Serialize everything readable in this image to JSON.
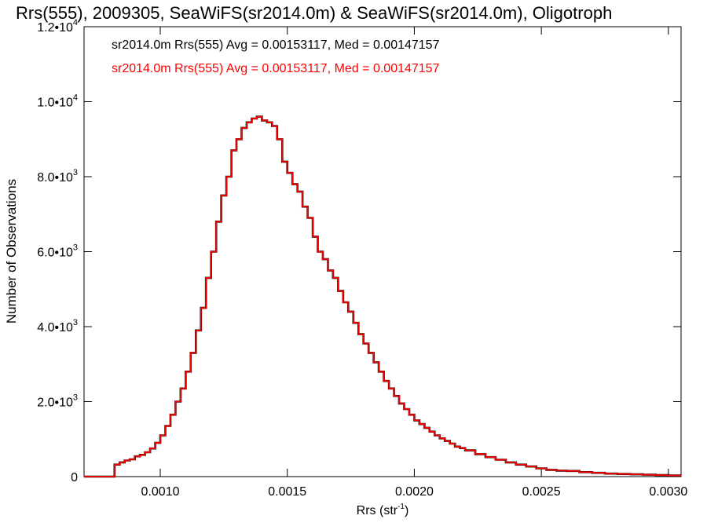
{
  "chart_data": {
    "type": "line",
    "title": "Rrs(555), 2009305, SeaWiFS(sr2014.0m) & SeaWiFS(sr2014.0m), Oligotroph",
    "xlabel": "Rrs (str",
    "xlabel_sup": "-1",
    "xlabel_tail": ")",
    "ylabel": "Number of Observations",
    "xlim": [
      0.0007,
      0.00305
    ],
    "ylim": [
      0,
      12000
    ],
    "grid": false,
    "x_ticks": [
      {
        "value": 0.001,
        "label": "0.0010"
      },
      {
        "value": 0.0015,
        "label": "0.0015"
      },
      {
        "value": 0.002,
        "label": "0.0020"
      },
      {
        "value": 0.0025,
        "label": "0.0025"
      },
      {
        "value": 0.003,
        "label": "0.0030"
      }
    ],
    "y_ticks": [
      {
        "value": 0,
        "mant": "0",
        "exp": ""
      },
      {
        "value": 2000,
        "mant": "2.0•10",
        "exp": "3"
      },
      {
        "value": 4000,
        "mant": "4.0•10",
        "exp": "3"
      },
      {
        "value": 6000,
        "mant": "6.0•10",
        "exp": "3"
      },
      {
        "value": 8000,
        "mant": "8.0•10",
        "exp": "3"
      },
      {
        "value": 10000,
        "mant": "1.0•10",
        "exp": "4"
      },
      {
        "value": 12000,
        "mant": "1.2•10",
        "exp": "4"
      }
    ],
    "annotations": [
      {
        "text": "sr2014.0m Rrs(555) Avg = 0.00153117, Med = 0.00147157",
        "color": "#000000"
      },
      {
        "text": "sr2014.0m Rrs(555) Avg = 0.00153117, Med = 0.00147157",
        "color": "#ff0000"
      }
    ],
    "series": [
      {
        "color": "#ff0000",
        "underlay_color": "#000000",
        "x": [
          0.0007,
          0.00076,
          0.00078,
          0.0008,
          0.00082,
          0.00084,
          0.00086,
          0.00088,
          0.0009,
          0.00092,
          0.00094,
          0.00096,
          0.00098,
          0.001,
          0.00102,
          0.00104,
          0.00106,
          0.00108,
          0.0011,
          0.00112,
          0.00114,
          0.00116,
          0.00118,
          0.0012,
          0.00122,
          0.00124,
          0.00126,
          0.00128,
          0.0013,
          0.00132,
          0.00134,
          0.00136,
          0.00138,
          0.0014,
          0.00142,
          0.00144,
          0.00146,
          0.00148,
          0.0015,
          0.00152,
          0.00154,
          0.00156,
          0.00158,
          0.0016,
          0.00162,
          0.00164,
          0.00166,
          0.00168,
          0.0017,
          0.00172,
          0.00174,
          0.00176,
          0.00178,
          0.0018,
          0.00182,
          0.00184,
          0.00186,
          0.00188,
          0.0019,
          0.00192,
          0.00194,
          0.00196,
          0.00198,
          0.002,
          0.00202,
          0.00204,
          0.00206,
          0.00208,
          0.0021,
          0.00212,
          0.00214,
          0.00216,
          0.00218,
          0.0022,
          0.00224,
          0.00228,
          0.00232,
          0.00236,
          0.0024,
          0.00244,
          0.00248,
          0.00252,
          0.00256,
          0.0026,
          0.00265,
          0.0027,
          0.00275,
          0.0028,
          0.00285,
          0.0029,
          0.00295,
          0.003,
          0.00305
        ],
        "y": [
          0,
          0,
          0,
          0,
          320,
          380,
          430,
          460,
          540,
          580,
          650,
          750,
          900,
          1100,
          1350,
          1650,
          2000,
          2350,
          2800,
          3300,
          3900,
          4500,
          5300,
          6000,
          6800,
          7500,
          8000,
          8700,
          9000,
          9300,
          9450,
          9550,
          9600,
          9500,
          9450,
          9350,
          9000,
          8400,
          8100,
          7800,
          7600,
          7200,
          6900,
          6400,
          6000,
          5800,
          5500,
          5300,
          4950,
          4650,
          4400,
          4100,
          3800,
          3550,
          3300,
          3050,
          2800,
          2550,
          2350,
          2150,
          1950,
          1800,
          1650,
          1500,
          1400,
          1300,
          1200,
          1100,
          1020,
          950,
          880,
          800,
          760,
          700,
          600,
          520,
          450,
          380,
          320,
          270,
          220,
          180,
          160,
          150,
          120,
          100,
          80,
          70,
          60,
          50,
          40,
          30,
          30
        ]
      }
    ]
  }
}
